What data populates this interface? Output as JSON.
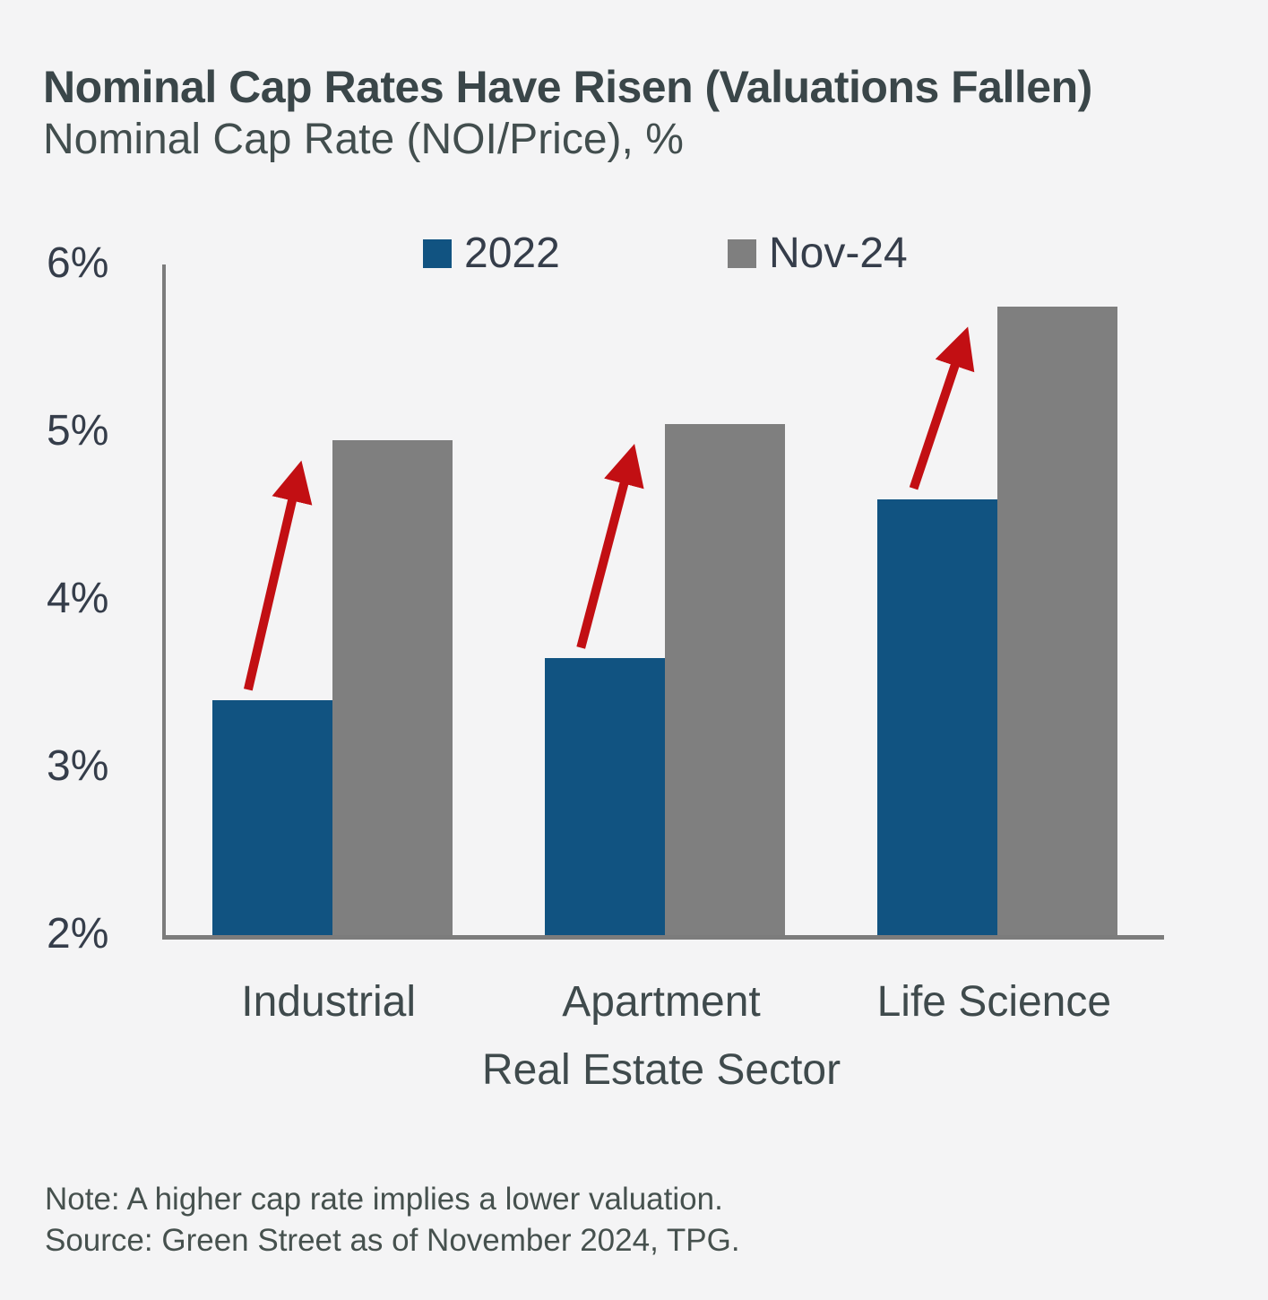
{
  "title": "Nominal Cap Rates Have Risen (Valuations Fallen)",
  "subtitle": "Nominal Cap Rate (NOI/Price), %",
  "notes": {
    "note": "Note: A higher cap rate implies a lower valuation.",
    "source": "Source: Green Street as of November 2024, TPG."
  },
  "colors": {
    "series_2022": "#115381",
    "series_nov24": "#7f7f7f",
    "arrow": "#c20f13",
    "axis": "#7c7c7c",
    "background": "#f4f4f5"
  },
  "chart_data": {
    "type": "bar",
    "categories": [
      "Industrial",
      "Apartment",
      "Life Science"
    ],
    "series": [
      {
        "name": "2022",
        "color": "#115381",
        "values": [
          3.4,
          3.65,
          4.6
        ]
      },
      {
        "name": "Nov-24",
        "color": "#7f7f7f",
        "values": [
          4.95,
          5.05,
          5.75
        ]
      }
    ],
    "title": "Nominal Cap Rates Have Risen (Valuations Fallen)",
    "subtitle": "Nominal Cap Rate (NOI/Price), %",
    "xlabel": "Real Estate Sector",
    "ylabel": "Nominal Cap Rate (NOI/Price), %",
    "ylim": [
      2,
      6
    ],
    "ytick_labels": [
      "6%",
      "5%",
      "4%",
      "3%",
      "2%"
    ],
    "ytick_values": [
      6,
      5,
      4,
      3,
      2
    ],
    "grid": false,
    "legend_position": "top",
    "annotations": [
      {
        "type": "arrow",
        "category": "Industrial",
        "from_series": "2022",
        "to_series": "Nov-24",
        "color": "#c20f13"
      },
      {
        "type": "arrow",
        "category": "Apartment",
        "from_series": "2022",
        "to_series": "Nov-24",
        "color": "#c20f13"
      },
      {
        "type": "arrow",
        "category": "Life Science",
        "from_series": "2022",
        "to_series": "Nov-24",
        "color": "#c20f13"
      }
    ]
  }
}
